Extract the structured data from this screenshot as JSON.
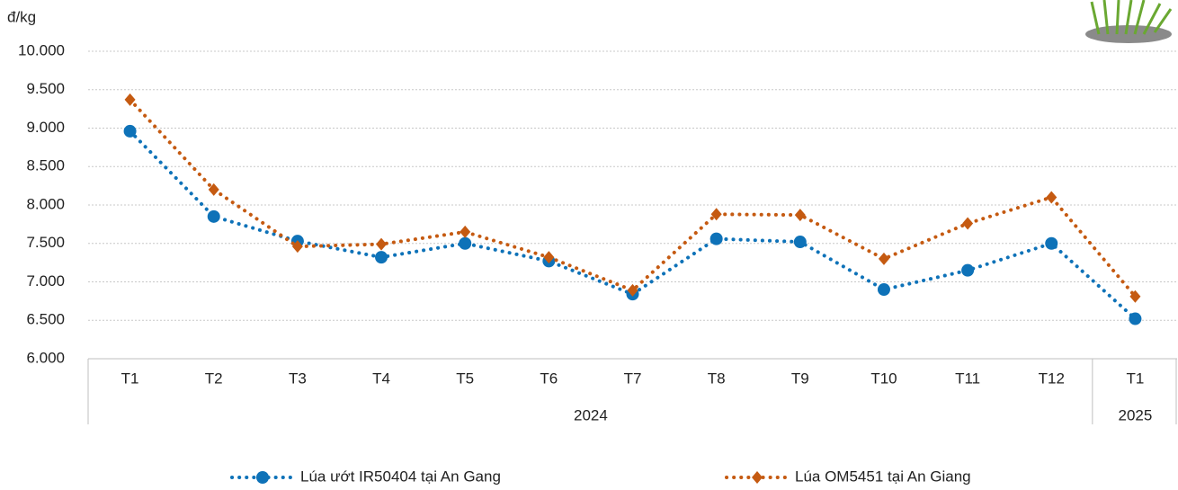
{
  "chart_data": {
    "type": "line",
    "y_unit": "đ/kg",
    "categories": [
      "T1",
      "T2",
      "T3",
      "T4",
      "T5",
      "T6",
      "T7",
      "T8",
      "T9",
      "T10",
      "T11",
      "T12",
      "T1"
    ],
    "x_groups": [
      {
        "name": "2024",
        "count": 12
      },
      {
        "name": "2025",
        "count": 1
      }
    ],
    "series": [
      {
        "name": "Lúa ướt IR50404 tại An Gang",
        "color": "#0e72b8",
        "marker": "circle",
        "values": [
          8960,
          7850,
          7530,
          7320,
          7500,
          7270,
          6840,
          7560,
          7520,
          6900,
          7150,
          7500,
          6520
        ]
      },
      {
        "name": "Lúa OM5451 tại An Giang",
        "color": "#c55a11",
        "marker": "diamond",
        "values": [
          9370,
          8200,
          7460,
          7490,
          7650,
          7320,
          6890,
          7880,
          7870,
          7300,
          7760,
          8100,
          6810
        ]
      }
    ],
    "ylim": [
      6000,
      10000
    ],
    "yticks": [
      {
        "value": 6000,
        "label": "6.000"
      },
      {
        "value": 6500,
        "label": "6.500"
      },
      {
        "value": 7000,
        "label": "7.000"
      },
      {
        "value": 7500,
        "label": "7.500"
      },
      {
        "value": 8000,
        "label": "8.000"
      },
      {
        "value": 8500,
        "label": "8.500"
      },
      {
        "value": 9000,
        "label": "9.000"
      },
      {
        "value": 9500,
        "label": "9.500"
      },
      {
        "value": 10000,
        "label": "10.000"
      }
    ],
    "grid": true,
    "legend": "bottom"
  }
}
